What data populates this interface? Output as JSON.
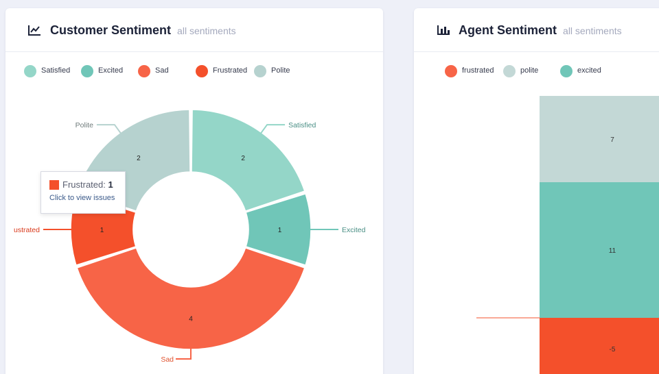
{
  "customer_card": {
    "title": "Customer Sentiment",
    "subtitle": "all sentiments",
    "icon": "line-chart-icon",
    "legend": [
      {
        "label": "Satisfied",
        "color": "#94d6c8"
      },
      {
        "label": "Excited",
        "color": "#70c6b8"
      },
      {
        "label": "Sad",
        "color": "#f76447"
      },
      {
        "label": "Frustrated",
        "color": "#f4502b"
      },
      {
        "label": "Polite",
        "color": "#b6d2cf"
      }
    ],
    "tooltip": {
      "label": "Frustrated:",
      "value": "1",
      "link": "Click to view issues",
      "color": "#f4502b"
    }
  },
  "agent_card": {
    "title": "Agent Sentiment",
    "subtitle": "all sentiments",
    "icon": "bar-chart-icon",
    "legend": [
      {
        "label": "frustrated",
        "color": "#f76447"
      },
      {
        "label": "polite",
        "color": "#c3d8d6"
      },
      {
        "label": "excited",
        "color": "#70c6b8"
      }
    ]
  },
  "chart_data": [
    {
      "type": "pie",
      "title": "Customer Sentiment",
      "categories": [
        "Satisfied",
        "Excited",
        "Sad",
        "Frustrated",
        "Polite"
      ],
      "values": [
        2,
        1,
        4,
        1,
        2
      ],
      "outer_labels": [
        "Satisfied",
        "Excited",
        "Sad",
        "ustrated",
        "Polite"
      ],
      "colors": [
        "#94d6c8",
        "#70c6b8",
        "#f76447",
        "#f4502b",
        "#b6d2cf"
      ],
      "legend_placement": "top"
    },
    {
      "type": "bar",
      "title": "Agent Sentiment",
      "series": [
        {
          "name": "excited",
          "values": [
            11
          ],
          "color": "#70c6b8"
        },
        {
          "name": "polite",
          "values": [
            7
          ],
          "color": "#c3d8d6"
        },
        {
          "name": "frustrated",
          "values": [
            -5
          ],
          "color": "#f4502b"
        }
      ],
      "stacked": true,
      "legend_placement": "top"
    }
  ]
}
